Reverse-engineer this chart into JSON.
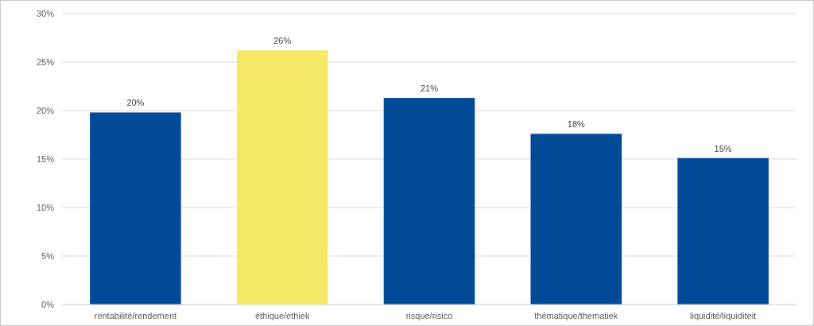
{
  "chart_data": {
    "type": "bar",
    "categories": [
      "rentabilité/rendement",
      "éthique/ethiek",
      "risque/risico",
      "thématique/thematiek",
      "liquidité/liquiditeit"
    ],
    "values": [
      19.8,
      26.2,
      21.3,
      17.6,
      15.1
    ],
    "colors": [
      "#004a97",
      "#f5e966",
      "#004a97",
      "#004a97",
      "#004a97"
    ],
    "value_labels": [
      "20%",
      "26%",
      "21%",
      "18%",
      "15%"
    ],
    "ylim": [
      0,
      30
    ],
    "yticks": [
      {
        "value": 0,
        "label": "0%"
      },
      {
        "value": 5,
        "label": "5%"
      },
      {
        "value": 10,
        "label": "10%"
      },
      {
        "value": 15,
        "label": "15%"
      },
      {
        "value": 20,
        "label": "20%"
      },
      {
        "value": 25,
        "label": "25%"
      },
      {
        "value": 30,
        "label": "30%"
      }
    ],
    "grid": "y"
  }
}
